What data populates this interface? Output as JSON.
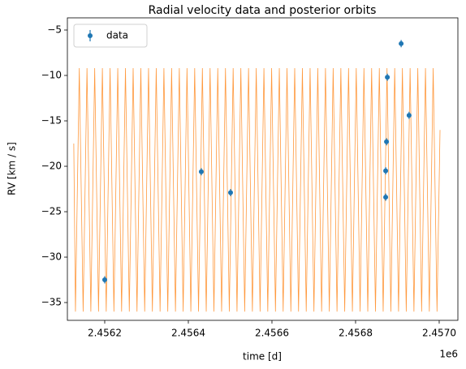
{
  "chart_data": {
    "type": "scatter",
    "title": "Radial velocity data and posterior orbits",
    "xlabel": "time [d]",
    "ylabel": "RV [km / s]",
    "x_offset_label": "1e6",
    "xlim": [
      2456110.7,
      2457044.7
    ],
    "ylim": [
      -36.96,
      -3.66
    ],
    "xticks": [
      {
        "value": 2456200,
        "label": "2.4562"
      },
      {
        "value": 2456400,
        "label": "2.4564"
      },
      {
        "value": 2456600,
        "label": "2.4566"
      },
      {
        "value": 2456800,
        "label": "2.4568"
      },
      {
        "value": 2457000,
        "label": "2.4570"
      }
    ],
    "yticks": [
      {
        "value": -35,
        "label": "−35"
      },
      {
        "value": -30,
        "label": "−30"
      },
      {
        "value": -25,
        "label": "−25"
      },
      {
        "value": -20,
        "label": "−20"
      },
      {
        "value": -15,
        "label": "−15"
      },
      {
        "value": -10,
        "label": "−10"
      },
      {
        "value": -5,
        "label": "−5"
      }
    ],
    "legend": "upper left",
    "series": [
      {
        "name": "data",
        "type": "scatter",
        "color": "#1f77b4",
        "x": [
          2456200,
          2456431,
          2456501,
          2456872,
          2456872,
          2456874,
          2456876,
          2456909,
          2456928
        ],
        "values": [
          -32.5,
          -20.6,
          -22.9,
          -23.4,
          -20.5,
          -17.3,
          -10.2,
          -6.5,
          -14.4
        ],
        "errors": [
          0.4,
          0.4,
          0.4,
          0.4,
          0.4,
          0.4,
          0.4,
          0.4,
          0.4
        ]
      },
      {
        "type": "line",
        "color": "#ff7f0e",
        "x": [
          2456126,
          2456130.0,
          2456139.2,
          2456148.4,
          2456157.6,
          2456166.8,
          2456176.0,
          2456185.2,
          2456194.4,
          2456203.6,
          2456212.8,
          2456222.0,
          2456231.2,
          2456240.4,
          2456249.6,
          2456258.8,
          2456268.0,
          2456277.2,
          2456286.4,
          2456295.6,
          2456304.8,
          2456314.0,
          2456323.2,
          2456332.4,
          2456341.6,
          2456350.8,
          2456360.0,
          2456369.2,
          2456378.4,
          2456387.6,
          2456396.8,
          2456406.0,
          2456415.2,
          2456424.4,
          2456433.6,
          2456442.8,
          2456452.0,
          2456461.2,
          2456470.4,
          2456479.6,
          2456488.8,
          2456498.0,
          2456507.2,
          2456516.4,
          2456525.6,
          2456534.8,
          2456544.0,
          2456553.2,
          2456562.4,
          2456571.6,
          2456580.8,
          2456590.0,
          2456599.2,
          2456608.4,
          2456617.6,
          2456626.8,
          2456636.0,
          2456645.2,
          2456654.4,
          2456663.6,
          2456672.8,
          2456682.0,
          2456691.2,
          2456700.4,
          2456709.6,
          2456718.8,
          2456728.0,
          2456737.2,
          2456746.4,
          2456755.6,
          2456764.8,
          2456774.0,
          2456783.2,
          2456792.4,
          2456801.6,
          2456810.8,
          2456820.0,
          2456829.2,
          2456838.4,
          2456847.6,
          2456856.8,
          2456866.0,
          2456875.2,
          2456884.4,
          2456893.6,
          2456902.8,
          2456912.0,
          2456921.2,
          2456930.4,
          2456939.6,
          2456948.8,
          2456958.0,
          2456967.2,
          2456976.4,
          2456985.6,
          2456994.8,
          2457002
        ],
        "values": [
          -17.5,
          -36,
          -9.2,
          -36,
          -9.2,
          -36,
          -9.2,
          -36,
          -9.2,
          -36,
          -9.2,
          -36,
          -9.2,
          -36,
          -9.2,
          -36,
          -9.2,
          -36,
          -9.2,
          -36,
          -9.2,
          -36,
          -9.2,
          -36,
          -9.2,
          -36,
          -9.2,
          -36,
          -9.2,
          -36,
          -9.2,
          -36,
          -9.2,
          -36,
          -9.2,
          -36,
          -9.2,
          -36,
          -9.2,
          -36,
          -9.2,
          -36,
          -9.2,
          -36,
          -9.2,
          -36,
          -9.2,
          -36,
          -9.2,
          -36,
          -9.2,
          -36,
          -9.2,
          -36,
          -9.2,
          -36,
          -9.2,
          -36,
          -9.2,
          -36,
          -9.2,
          -36,
          -9.2,
          -36,
          -9.2,
          -36,
          -9.2,
          -36,
          -9.2,
          -36,
          -9.2,
          -36,
          -9.2,
          -36,
          -9.2,
          -36,
          -9.2,
          -36,
          -9.2,
          -36,
          -9.2,
          -36,
          -9.2,
          -36,
          -9.2,
          -36,
          -9.2,
          -36,
          -9.2,
          -36,
          -9.2,
          -36,
          -9.2,
          -36,
          -9.2,
          -36,
          -16
        ]
      }
    ]
  }
}
